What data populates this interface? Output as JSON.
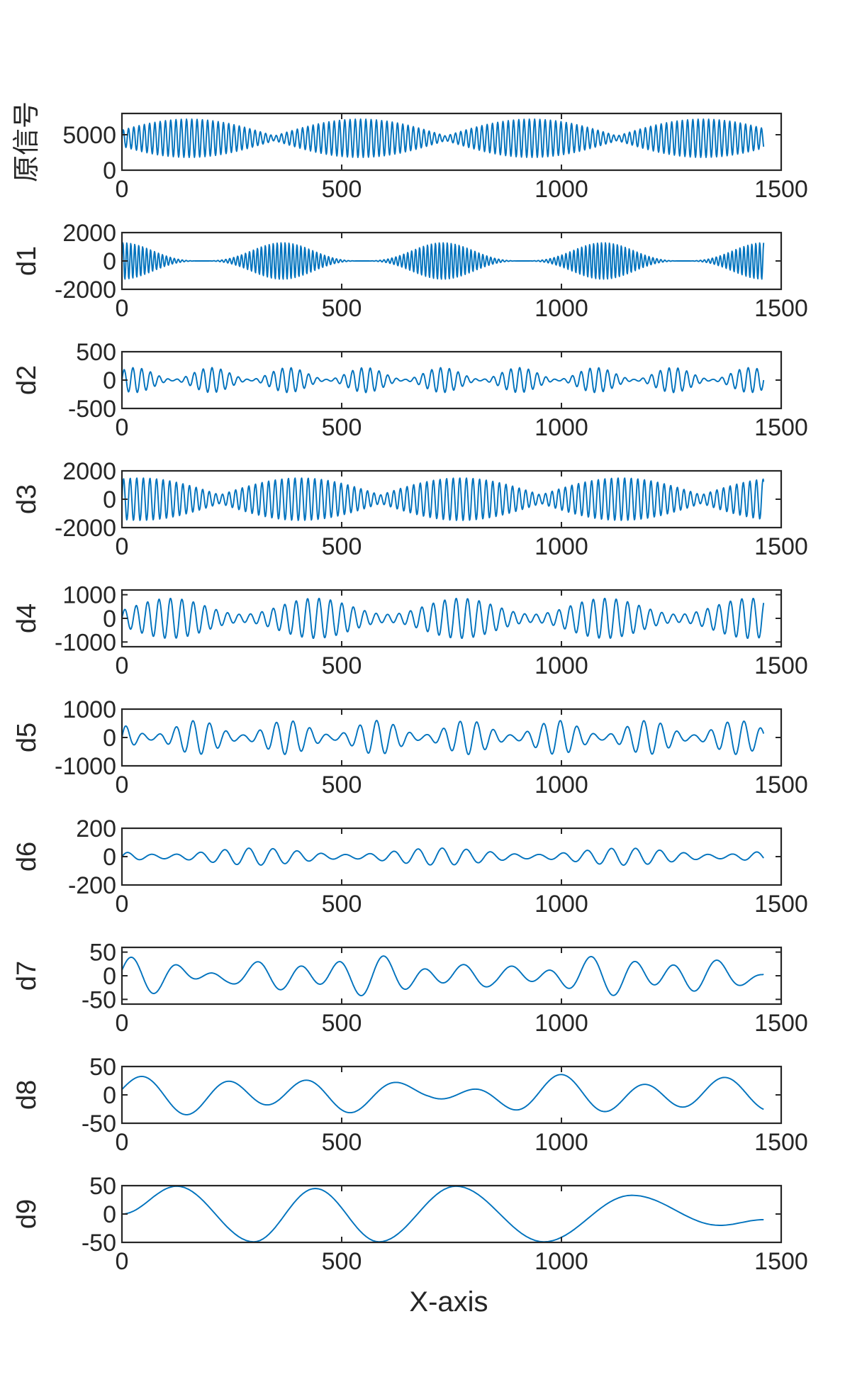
{
  "figure": {
    "xlabel": "X-axis",
    "line_color": "#0072BD",
    "axis_color": "#262626",
    "background": "#ffffff"
  },
  "chart_data": [
    {
      "type": "line",
      "ylabel": "原信号",
      "xlim": [
        0,
        1500
      ],
      "ylim": [
        0,
        8000
      ],
      "xticks": [
        0,
        500,
        1000,
        1500
      ],
      "yticks": [
        0,
        5000
      ],
      "signal": {
        "n": 1460,
        "base": 4500,
        "components": [
          {
            "period": 12,
            "amplitude": 2700,
            "envelope_period": 390,
            "envelope_floor": 0.12,
            "envelope_phase_deg": 200
          }
        ]
      }
    },
    {
      "type": "line",
      "ylabel": "d1",
      "xlim": [
        0,
        1500
      ],
      "ylim": [
        -2000,
        2000
      ],
      "xticks": [
        0,
        500,
        1000,
        1500
      ],
      "yticks": [
        -2000,
        0,
        2000
      ],
      "signal": {
        "n": 1460,
        "base": 0,
        "components": [
          {
            "period": 9,
            "amplitude": 1300,
            "envelope_period": 365,
            "envelope_floor": 0.0,
            "envelope_phase_deg": 90,
            "envelope_power": 3
          }
        ]
      }
    },
    {
      "type": "line",
      "ylabel": "d2",
      "xlim": [
        0,
        1500
      ],
      "ylim": [
        -500,
        500
      ],
      "xticks": [
        0,
        500,
        1000,
        1500
      ],
      "yticks": [
        -500,
        0,
        500
      ],
      "signal": {
        "n": 1460,
        "base": 0,
        "components": [
          {
            "period": 20,
            "amplitude": 220,
            "envelope_period": 175,
            "envelope_floor": 0.06,
            "envelope_phase_deg": 60,
            "envelope_power": 2
          }
        ]
      }
    },
    {
      "type": "line",
      "ylabel": "d3",
      "xlim": [
        0,
        1500
      ],
      "ylim": [
        -2000,
        2000
      ],
      "xticks": [
        0,
        500,
        1000,
        1500
      ],
      "yticks": [
        -2000,
        0,
        2000
      ],
      "signal": {
        "n": 1460,
        "base": 0,
        "components": [
          {
            "period": 15,
            "amplitude": 1500,
            "envelope_period": 365,
            "envelope_floor": 0.2,
            "envelope_phase_deg": 70
          }
        ]
      }
    },
    {
      "type": "line",
      "ylabel": "d4",
      "xlim": [
        0,
        1500
      ],
      "ylim": [
        -1200,
        1200
      ],
      "xticks": [
        0,
        500,
        1000,
        1500
      ],
      "yticks": [
        -1000,
        0,
        1000
      ],
      "signal": {
        "n": 1460,
        "base": 0,
        "components": [
          {
            "period": 26,
            "amplitude": 850,
            "envelope_period": 330,
            "envelope_floor": 0.2,
            "envelope_phase_deg": 30,
            "envelope_power": 2
          }
        ]
      }
    },
    {
      "type": "line",
      "ylabel": "d5",
      "xlim": [
        0,
        1500
      ],
      "ylim": [
        -1000,
        1000
      ],
      "xticks": [
        0,
        500,
        1000,
        1500
      ],
      "yticks": [
        -1000,
        0,
        1000
      ],
      "signal": {
        "n": 1460,
        "base": 0,
        "components": [
          {
            "period": 38,
            "amplitude": 600,
            "envelope_period": 205,
            "envelope_floor": 0.15,
            "envelope_phase_deg": 300,
            "envelope_power": 2
          }
        ]
      }
    },
    {
      "type": "line",
      "ylabel": "d6",
      "xlim": [
        0,
        1500
      ],
      "ylim": [
        -200,
        200
      ],
      "xticks": [
        0,
        500,
        1000,
        1500
      ],
      "yticks": [
        -200,
        0,
        200
      ],
      "signal": {
        "n": 1460,
        "base": 0,
        "components": [
          {
            "period": 55,
            "amplitude": 60,
            "envelope_period": 420,
            "envelope_floor": 0.25,
            "envelope_phase_deg": 140,
            "envelope_power": 2
          }
        ]
      }
    },
    {
      "type": "line",
      "ylabel": "d7",
      "xlim": [
        0,
        1500
      ],
      "ylim": [
        -60,
        60
      ],
      "xticks": [
        0,
        500,
        1000,
        1500
      ],
      "yticks": [
        -50,
        0,
        50
      ],
      "signal": {
        "n": 1460,
        "base": 0,
        "components": [
          {
            "period": 95,
            "amplitude": 32,
            "envelope_period": 610,
            "envelope_floor": 0.3,
            "envelope_phase_deg": 110
          },
          {
            "period": 150,
            "amplitude": 12,
            "envelope_period": 0,
            "envelope_floor": 1,
            "envelope_phase_deg": 0
          }
        ]
      }
    },
    {
      "type": "line",
      "ylabel": "d8",
      "xlim": [
        0,
        1500
      ],
      "ylim": [
        -50,
        50
      ],
      "xticks": [
        0,
        500,
        1000,
        1500
      ],
      "yticks": [
        -50,
        0,
        50
      ],
      "signal": {
        "n": 1460,
        "base": 0,
        "components": [
          {
            "period": 190,
            "amplitude": 28,
            "envelope_period": 900,
            "envelope_floor": 0.45,
            "envelope_phase_deg": 40
          },
          {
            "period": 330,
            "amplitude": 10,
            "envelope_period": 0,
            "envelope_floor": 1,
            "envelope_phase_deg": 0
          }
        ]
      }
    },
    {
      "type": "line",
      "ylabel": "d9",
      "xlim": [
        0,
        1500
      ],
      "ylim": [
        -50,
        50
      ],
      "xticks": [
        0,
        500,
        1000,
        1500
      ],
      "yticks": [
        -50,
        0,
        50
      ],
      "points": [
        [
          0,
          0
        ],
        [
          125,
          49
        ],
        [
          300,
          -49
        ],
        [
          440,
          45
        ],
        [
          585,
          -49
        ],
        [
          760,
          49
        ],
        [
          960,
          -49
        ],
        [
          1160,
          33
        ],
        [
          1360,
          -20
        ],
        [
          1460,
          -10
        ]
      ]
    }
  ]
}
